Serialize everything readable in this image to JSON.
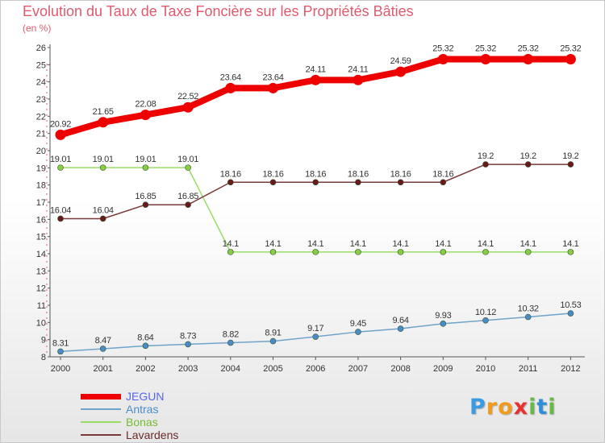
{
  "header": {
    "title": "Evolution du Taux de Taxe Foncière sur les Propriétés Bâties",
    "subtitle": "(en %)"
  },
  "brand": {
    "letters": [
      "P",
      "r",
      "o",
      "x",
      "i",
      "t",
      "i"
    ],
    "colors": [
      "#3b9be0",
      "#f29a1c",
      "#f29a1c",
      "#e8322f",
      "#6ab847",
      "#2e8fd6",
      "#6ab847"
    ]
  },
  "chart_data": {
    "type": "line",
    "title": "Evolution du Taux de Taxe Foncière sur les Propriétés Bâties",
    "ylabel": "(en %)",
    "xlabel": "",
    "x": [
      "2000",
      "2001",
      "2002",
      "2003",
      "2004",
      "2005",
      "2006",
      "2007",
      "2008",
      "2009",
      "2010",
      "2011",
      "2012"
    ],
    "ylim": [
      8,
      26
    ],
    "yticks": [
      8,
      9,
      10,
      11,
      12,
      13,
      14,
      15,
      16,
      17,
      18,
      19,
      20,
      21,
      22,
      23,
      24,
      25,
      26
    ],
    "grid": false,
    "legend_position": "bottom-left",
    "series": [
      {
        "name": "JEGUN",
        "color": "#ee0000",
        "emphasis": true,
        "values": [
          20.92,
          21.65,
          22.08,
          22.52,
          23.64,
          23.64,
          24.11,
          24.11,
          24.59,
          25.32,
          25.32,
          25.32,
          25.32
        ],
        "labels": [
          "20.92",
          "21.65",
          "22.08",
          "22.52",
          "23.64",
          "23.64",
          "24.11",
          "24.11",
          "24.59",
          "25.32",
          "25.32",
          "25.32",
          "25.32"
        ]
      },
      {
        "name": "Antras",
        "color": "#6fa3c8",
        "marker_color": "#4a8cc8",
        "values": [
          8.31,
          8.47,
          8.64,
          8.73,
          8.82,
          8.91,
          9.17,
          9.45,
          9.64,
          9.93,
          10.12,
          10.32,
          10.53
        ],
        "labels": [
          "8.31",
          "8.47",
          "8.64",
          "8.73",
          "8.82",
          "8.91",
          "9.17",
          "9.45",
          "9.64",
          "9.93",
          "10.12",
          "10.32",
          "10.53"
        ]
      },
      {
        "name": "Bonas",
        "color": "#99dd66",
        "marker_color": "#88cc44",
        "values": [
          19.01,
          19.01,
          19.01,
          19.01,
          14.1,
          14.1,
          14.1,
          14.1,
          14.1,
          14.1,
          14.1,
          14.1,
          14.1
        ],
        "labels": [
          "19.01",
          "19.01",
          "19.01",
          "19.01",
          "14.1",
          "14.1",
          "14.1",
          "14.1",
          "14.1",
          "14.1",
          "14.1",
          "14.1",
          "14.1"
        ]
      },
      {
        "name": "Lavardens",
        "color": "#7a3a3a",
        "marker_color": "#6a1a1a",
        "values": [
          16.04,
          16.04,
          16.85,
          16.85,
          18.16,
          18.16,
          18.16,
          18.16,
          18.16,
          18.16,
          19.2,
          19.2,
          19.2
        ],
        "labels": [
          "16.04",
          "16.04",
          "16.85",
          "16.85",
          "18.16",
          "18.16",
          "18.16",
          "18.16",
          "18.16",
          "18.16",
          "19.2",
          "19.2",
          "19.2"
        ]
      }
    ]
  }
}
